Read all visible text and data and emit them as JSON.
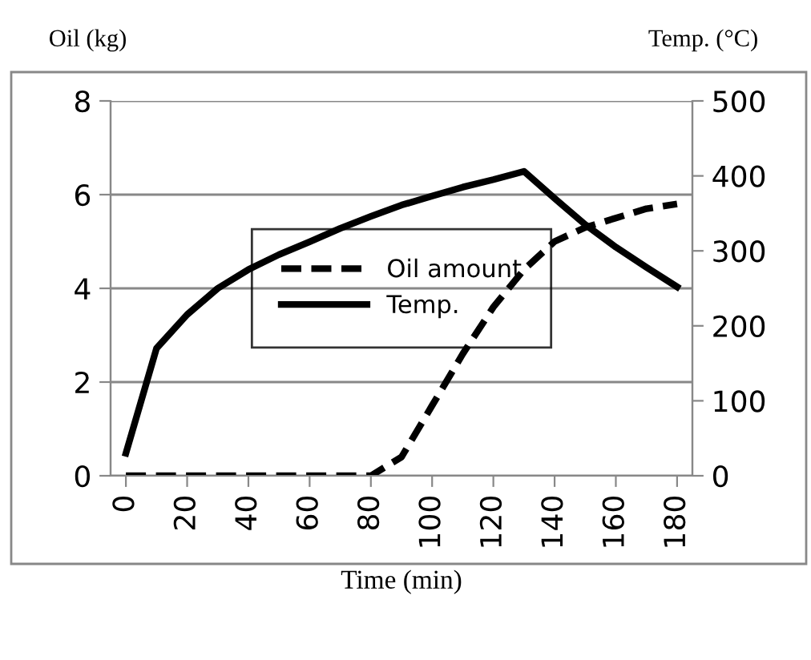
{
  "chart_data": {
    "type": "line",
    "categories": [
      "0",
      null,
      "20",
      null,
      "40",
      null,
      "60",
      null,
      "80",
      null,
      "100",
      null,
      "120",
      null,
      "140",
      null,
      "160",
      null,
      "180"
    ],
    "xlabel": "Time (min)",
    "ylabel": "Oil (kg)",
    "y2label": "Temp. (°C)",
    "series": [
      {
        "name": "Oil amount",
        "color": "#000000",
        "line_style": "dashed",
        "values": [
          0,
          0,
          0,
          0,
          0,
          0,
          0,
          0,
          0,
          0.4,
          1.5,
          2.6,
          3.6,
          4.4,
          5.0,
          5.3,
          5.5,
          5.7,
          5.8
        ]
      },
      {
        "name": "Temp.",
        "color": "#000000",
        "line_style": "solid",
        "axis": "y2",
        "values": [
          30,
          170,
          215,
          250,
          275,
          295,
          312,
          330,
          346,
          361,
          373,
          385,
          395,
          406,
          370,
          335,
          305,
          278,
          252
        ]
      }
    ],
    "ylim": [
      0,
      8
    ],
    "yticks": [
      0,
      2,
      4,
      6,
      8
    ],
    "y2lim": [
      0,
      500
    ],
    "y2ticks": [
      0,
      100,
      200,
      300,
      400,
      500
    ],
    "grid": "y",
    "legend": "center",
    "marker": "none"
  }
}
